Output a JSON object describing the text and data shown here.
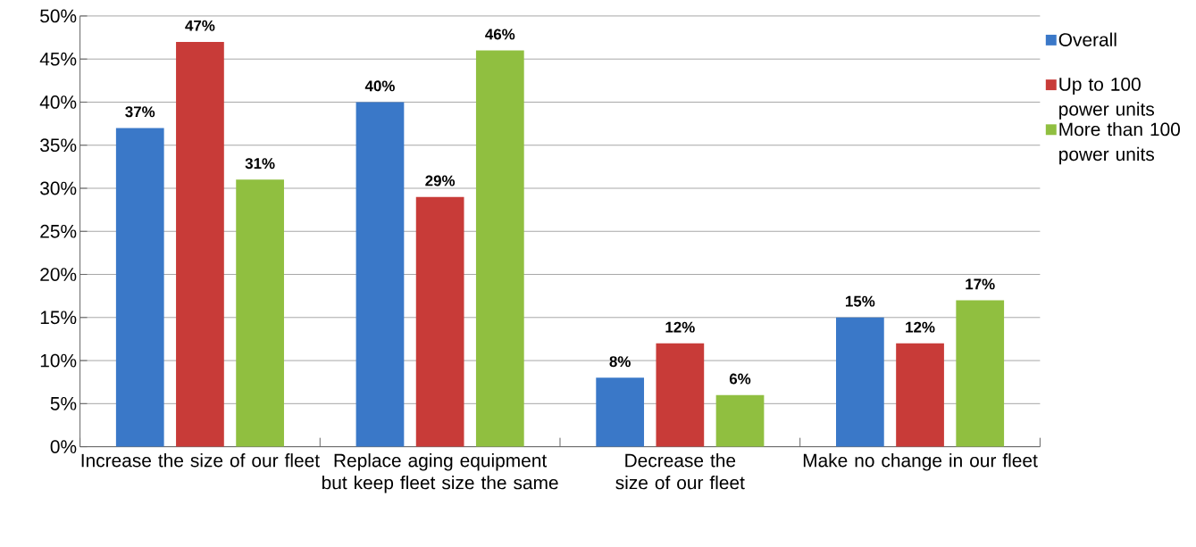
{
  "chart_data": {
    "type": "bar",
    "categories": [
      "Increase the size of our fleet",
      "Replace aging equipment but keep fleet size the same",
      "Decrease the size of our fleet",
      "Make no change in our fleet"
    ],
    "series": [
      {
        "name": "Overall",
        "color": "#3a78c8",
        "values": [
          37,
          40,
          8,
          15
        ],
        "value_labels": [
          "37%",
          "40%",
          "8%",
          "15%"
        ]
      },
      {
        "name": "Up to 100 power units",
        "color": "#c83b38",
        "values": [
          47,
          29,
          12,
          12
        ],
        "value_labels": [
          "47%",
          "29%",
          "12%",
          "12%"
        ]
      },
      {
        "name": "More than 100 power units",
        "color": "#90bf40",
        "values": [
          31,
          46,
          6,
          17
        ],
        "value_labels": [
          "31%",
          "46%",
          "6%",
          "17%"
        ]
      }
    ],
    "ylim": [
      0,
      50
    ],
    "yticks": [
      {
        "value": 0,
        "label": "0%"
      },
      {
        "value": 5,
        "label": "5%"
      },
      {
        "value": 10,
        "label": "10%"
      },
      {
        "value": 15,
        "label": "15%"
      },
      {
        "value": 20,
        "label": "20%"
      },
      {
        "value": 25,
        "label": "25%"
      },
      {
        "value": 30,
        "label": "30%"
      },
      {
        "value": 35,
        "label": "35%"
      },
      {
        "value": 40,
        "label": "40%"
      },
      {
        "value": 45,
        "label": "45%"
      },
      {
        "value": 50,
        "label": "50%"
      }
    ],
    "grid": "y",
    "legend": "right"
  }
}
